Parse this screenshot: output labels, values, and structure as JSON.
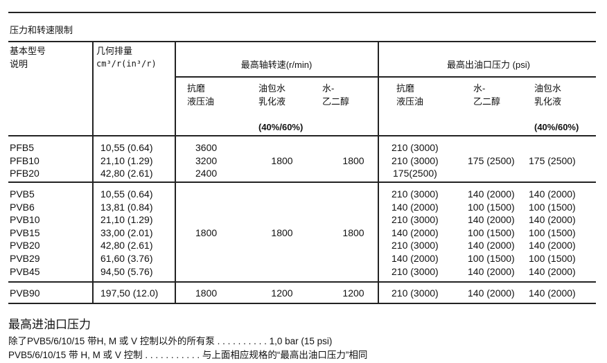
{
  "section_title": "压力和转速限制",
  "header": {
    "model_line1": "基本型号",
    "model_line2": "说明",
    "disp_line1": "几何排量",
    "disp_line2": "cm³/r(in³/r)",
    "speed_title": "最高轴转速(r/min)",
    "pressure_title": "最高出油口压力 (psi)",
    "speed_cols": [
      {
        "line1": "抗磨",
        "line2": "液压油",
        "note": ""
      },
      {
        "line1": "油包水",
        "line2": "乳化液",
        "note": "(40%/60%)"
      },
      {
        "line1": "水-",
        "line2": "乙二醇",
        "note": ""
      }
    ],
    "pressure_cols": [
      {
        "line1": "抗磨",
        "line2": "液压油",
        "note": ""
      },
      {
        "line1": "水-",
        "line2": "乙二醇",
        "note": ""
      },
      {
        "line1": "油包水",
        "line2": "乳化液",
        "note": "(40%/60%)"
      }
    ]
  },
  "groups": [
    {
      "speed": [
        "3600\n3200\n2400",
        "1800",
        "1800"
      ],
      "rows": [
        {
          "model": "PFB5",
          "disp": "10,55 (0.64)",
          "p1": "210 (3000)",
          "p2": "",
          "p3": ""
        },
        {
          "model": "PFB10",
          "disp": "21,10 (1.29)",
          "p1": "210 (3000)",
          "p2": "175 (2500)",
          "p3": "175 (2500)"
        },
        {
          "model": "PFB20",
          "disp": "42,80 (2.61)",
          "p1": "175(2500)",
          "p2": "",
          "p3": ""
        }
      ]
    },
    {
      "speed": [
        "1800",
        "1800",
        "1800"
      ],
      "rows": [
        {
          "model": "PVB5",
          "disp": "10,55 (0.64)",
          "p1": "210 (3000)",
          "p2": "140 (2000)",
          "p3": "140 (2000)"
        },
        {
          "model": "PVB6",
          "disp": "13,81 (0.84)",
          "p1": "140 (2000)",
          "p2": "100 (1500)",
          "p3": "100 (1500)"
        },
        {
          "model": "PVB10",
          "disp": "21,10 (1.29)",
          "p1": "210 (3000)",
          "p2": "140 (2000)",
          "p3": "140 (2000)"
        },
        {
          "model": "PVB15",
          "disp": "33,00 (2.01)",
          "p1": "140 (2000)",
          "p2": "100 (1500)",
          "p3": "100 (1500)"
        },
        {
          "model": "PVB20",
          "disp": "42,80 (2.61)",
          "p1": "210 (3000)",
          "p2": "140 (2000)",
          "p3": "140 (2000)"
        },
        {
          "model": "PVB29",
          "disp": "61,60 (3.76)",
          "p1": "140 (2000)",
          "p2": "100 (1500)",
          "p3": "100 (1500)"
        },
        {
          "model": "PVB45",
          "disp": "94,50 (5.76)",
          "p1": "210 (3000)",
          "p2": "140 (2000)",
          "p3": "140 (2000)"
        }
      ]
    },
    {
      "speed": [
        "1800",
        "1200",
        "1200"
      ],
      "rows": [
        {
          "model": "PVB90",
          "disp": "197,50 (12.0)",
          "p1": "210 (3000)",
          "p2": "140 (2000)",
          "p3": "140 (2000)"
        }
      ]
    }
  ],
  "inlet": {
    "title": "最高进油口压力",
    "line1_label": "除了PVB5/6/10/15 带H, M 或  V 控制以外的所有泵 . . . . . . . . . . ",
    "line1_value": "1,0 bar (15 psi)",
    "line2_label": "PVB5/6/10/15 带  H, M 或  V 控制 . . . . . . . . . . . ",
    "line2_value": "与上面相应规格的“最高出油口压力”相同"
  }
}
